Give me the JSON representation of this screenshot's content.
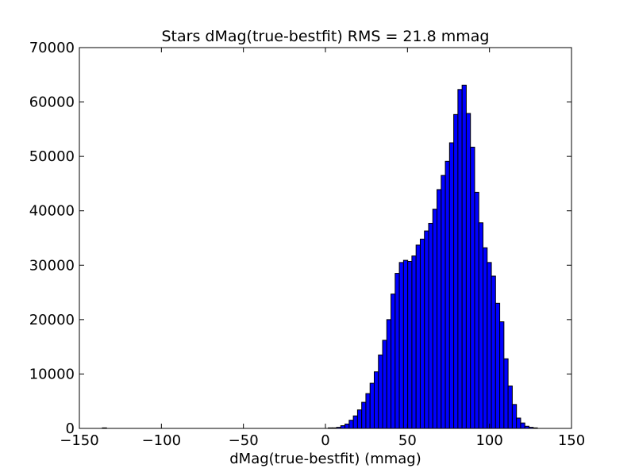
{
  "chart_data": {
    "type": "bar",
    "title": "Stars dMag(true-bestfit) RMS = 21.8 mmag",
    "xlabel": "dMag(true-bestfit) (mmag)",
    "ylabel": "",
    "xlim": [
      -150,
      150
    ],
    "ylim": [
      0,
      70000
    ],
    "xticks": [
      -150,
      -100,
      -50,
      0,
      50,
      100,
      150
    ],
    "xtick_labels": [
      "−150",
      "−100",
      "−50",
      "0",
      "50",
      "100",
      "150"
    ],
    "yticks": [
      0,
      10000,
      20000,
      30000,
      40000,
      50000,
      60000,
      70000
    ],
    "ytick_labels": [
      "0",
      "10000",
      "20000",
      "30000",
      "40000",
      "50000",
      "60000",
      "70000"
    ],
    "grid": false,
    "bar_color": "#0000ff",
    "edge_color": "#000000",
    "bin_width": 2.55,
    "bin_start": -136,
    "counts": [
      100,
      0,
      0,
      0,
      0,
      0,
      0,
      0,
      0,
      0,
      0,
      0,
      0,
      0,
      0,
      0,
      0,
      0,
      0,
      0,
      0,
      0,
      0,
      0,
      0,
      0,
      0,
      0,
      0,
      0,
      0,
      0,
      0,
      0,
      0,
      0,
      0,
      0,
      0,
      0,
      0,
      0,
      0,
      0,
      0,
      0,
      0,
      0,
      0,
      0,
      0,
      0,
      0,
      0,
      100,
      100,
      200,
      500,
      800,
      1500,
      2300,
      3400,
      4800,
      6400,
      8300,
      10400,
      13500,
      16200,
      20000,
      24700,
      28500,
      30500,
      30900,
      30700,
      31700,
      33700,
      34800,
      36300,
      37700,
      40300,
      43900,
      46500,
      49100,
      52500,
      57700,
      62300,
      63100,
      57900,
      51700,
      43400,
      37800,
      33200,
      30500,
      28000,
      23000,
      19600,
      12800,
      7800,
      4400,
      1900,
      1000,
      400,
      200,
      100,
      0,
      0,
      0,
      0,
      0,
      0,
      0,
      0,
      0,
      0,
      0,
      0,
      0,
      0,
      0,
      0,
      0,
      0,
      0,
      0,
      0,
      0,
      0,
      0,
      0,
      0,
      0,
      0,
      0,
      0,
      0,
      0,
      0,
      0,
      0,
      0,
      0,
      0,
      0,
      0,
      0,
      0,
      0,
      0,
      0,
      0,
      0,
      0,
      0,
      0,
      0,
      0,
      0,
      0,
      0,
      0,
      0,
      0,
      0,
      0,
      0,
      0,
      0,
      0,
      0,
      0,
      0,
      0,
      0,
      0,
      100
    ]
  }
}
